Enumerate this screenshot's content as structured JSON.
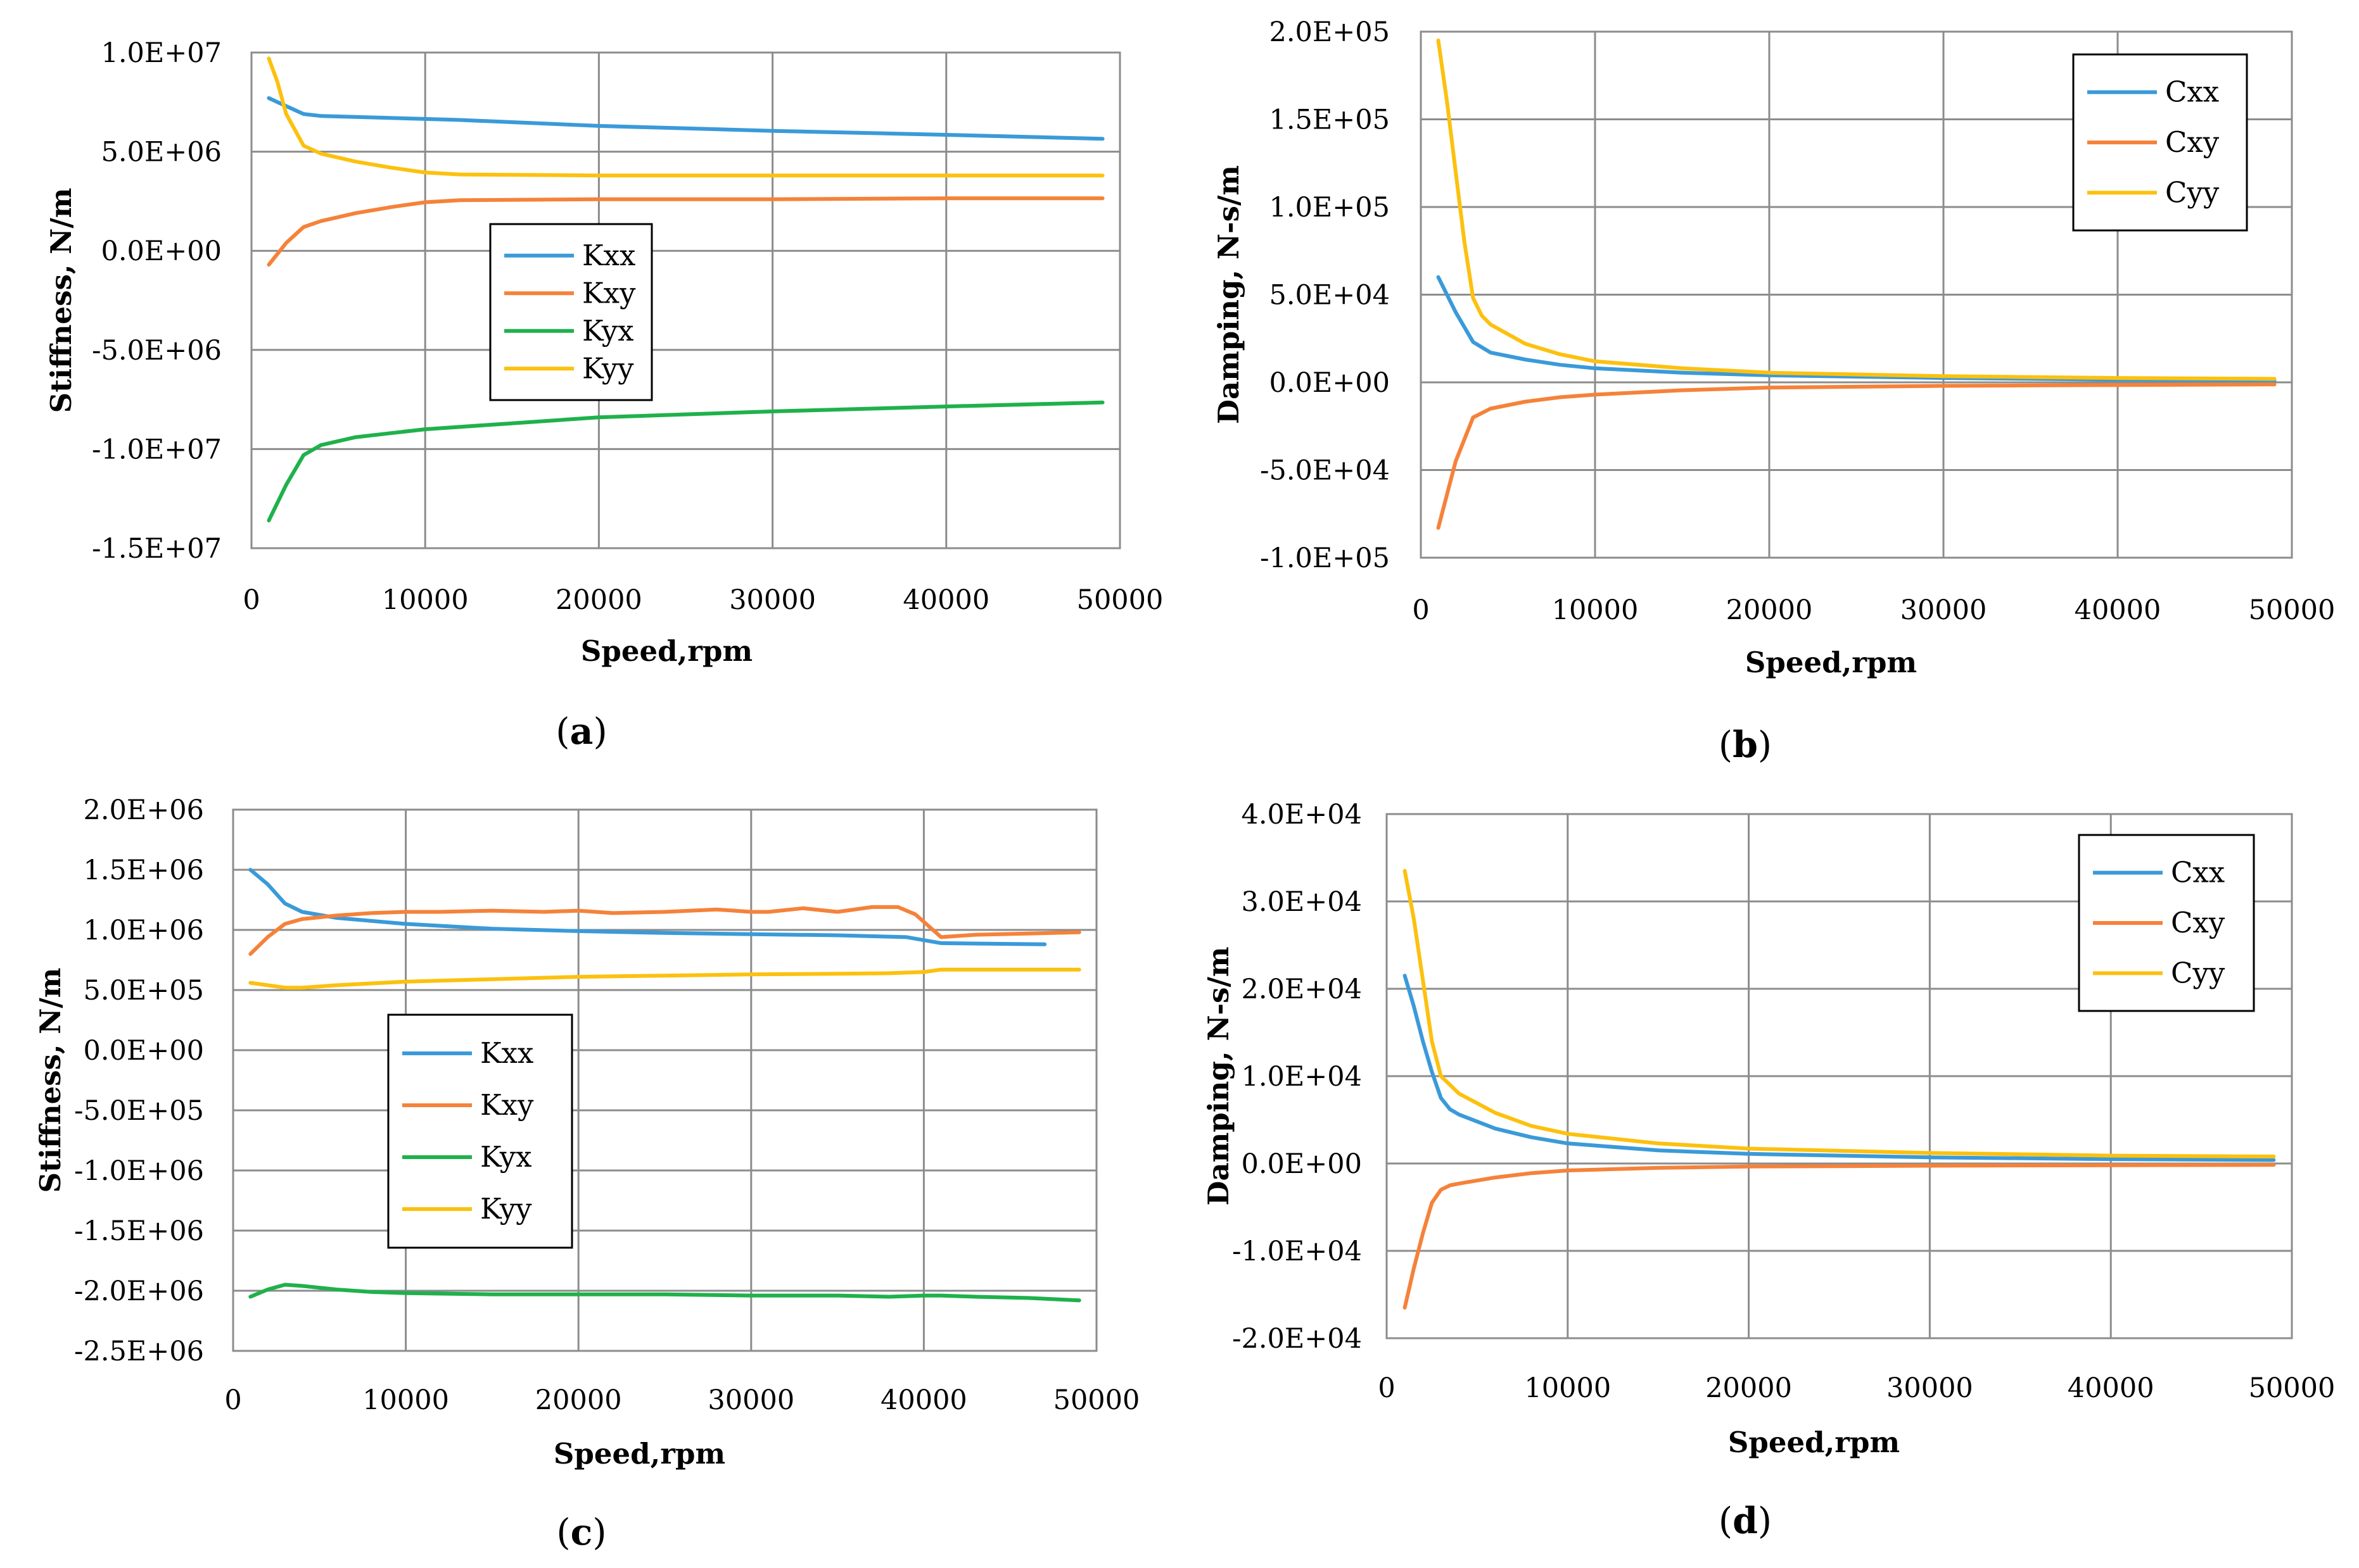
{
  "figure": {
    "captions": [
      "(a)",
      "(b)",
      "(c)",
      "(d)"
    ]
  },
  "colors": {
    "Kxx": "#3a9ad9",
    "Kxy": "#f5823a",
    "Kyx": "#1fb14b",
    "Kyy": "#fcc10f",
    "Cxx": "#3a9ad9",
    "Cxy": "#f5823a",
    "Cyy": "#fcc10f",
    "grid": "#8c8c8c",
    "frame": "#8c8c8c"
  },
  "chart_data": [
    {
      "id": "a",
      "type": "line",
      "caption_letter": "a",
      "xlabel": "Speed,rpm",
      "ylabel": "Stiffness, N/m",
      "xlim": [
        0,
        50000
      ],
      "ylim": [
        -15000000,
        10000000
      ],
      "xticks": [
        0,
        10000,
        20000,
        30000,
        40000,
        50000
      ],
      "yticks": [
        10000000,
        5000000,
        0,
        -5000000,
        -10000000,
        -15000000
      ],
      "ytick_labels": [
        "1.0E+07",
        "5.0E+06",
        "0.0E+00",
        "-5.0E+06",
        "-1.0E+07",
        "-1.5E+07"
      ],
      "xtick_labels": [
        "0",
        "10000",
        "20000",
        "30000",
        "40000",
        "50000"
      ],
      "legend_position": "center-left",
      "series": [
        {
          "name": "Kxx",
          "x": [
            1000,
            2000,
            3000,
            4000,
            6000,
            10000,
            12000,
            20000,
            30000,
            40000,
            49000
          ],
          "values": [
            7700000,
            7300000,
            6900000,
            6800000,
            6750000,
            6650000,
            6600000,
            6300000,
            6050000,
            5850000,
            5650000
          ]
        },
        {
          "name": "Kxy",
          "x": [
            1000,
            2000,
            3000,
            4000,
            6000,
            8000,
            10000,
            12000,
            20000,
            30000,
            40000,
            49000
          ],
          "values": [
            -700000,
            400000,
            1200000,
            1500000,
            1900000,
            2200000,
            2450000,
            2550000,
            2600000,
            2600000,
            2650000,
            2650000
          ]
        },
        {
          "name": "Kyx",
          "x": [
            1000,
            2000,
            3000,
            4000,
            6000,
            8000,
            10000,
            15000,
            20000,
            30000,
            40000,
            49000
          ],
          "values": [
            -13600000,
            -11800000,
            -10300000,
            -9800000,
            -9400000,
            -9200000,
            -9000000,
            -8700000,
            -8400000,
            -8100000,
            -7850000,
            -7650000
          ]
        },
        {
          "name": "Kyy",
          "x": [
            1000,
            1500,
            2000,
            3000,
            4000,
            6000,
            8000,
            10000,
            12000,
            20000,
            30000,
            40000,
            49000
          ],
          "values": [
            9700000,
            8500000,
            6900000,
            5300000,
            4900000,
            4500000,
            4200000,
            3950000,
            3850000,
            3800000,
            3800000,
            3800000,
            3800000
          ]
        }
      ]
    },
    {
      "id": "b",
      "type": "line",
      "caption_letter": "b",
      "xlabel": "Speed,rpm",
      "ylabel": "Damping, N-s/m",
      "xlim": [
        0,
        50000
      ],
      "ylim": [
        -100000,
        200000
      ],
      "xticks": [
        0,
        10000,
        20000,
        30000,
        40000,
        50000
      ],
      "yticks": [
        200000,
        150000,
        100000,
        50000,
        0,
        -50000,
        -100000
      ],
      "ytick_labels": [
        "2.0E+05",
        "1.5E+05",
        "1.0E+05",
        "5.0E+04",
        "0.0E+00",
        "-5.0E+04",
        "-1.0E+05"
      ],
      "xtick_labels": [
        "0",
        "10000",
        "20000",
        "30000",
        "40000",
        "50000"
      ],
      "legend_position": "top-right",
      "series": [
        {
          "name": "Cxx",
          "x": [
            1000,
            2000,
            3000,
            4000,
            6000,
            8000,
            10000,
            15000,
            20000,
            30000,
            40000,
            49000
          ],
          "values": [
            60000,
            40000,
            23000,
            17000,
            13000,
            10000,
            8000,
            5500,
            4000,
            2500,
            1500,
            1000
          ]
        },
        {
          "name": "Cxy",
          "x": [
            1000,
            2000,
            3000,
            4000,
            6000,
            8000,
            10000,
            15000,
            20000,
            30000,
            40000,
            49000
          ],
          "values": [
            -83000,
            -45000,
            -20000,
            -15000,
            -11000,
            -8500,
            -7000,
            -4500,
            -3000,
            -2000,
            -1500,
            -1200
          ]
        },
        {
          "name": "Cyy",
          "x": [
            1000,
            1500,
            2000,
            2500,
            3000,
            3500,
            4000,
            6000,
            8000,
            10000,
            15000,
            20000,
            30000,
            40000,
            49000
          ],
          "values": [
            195000,
            160000,
            120000,
            80000,
            48000,
            38000,
            33000,
            22000,
            16000,
            12000,
            8000,
            5500,
            3500,
            2500,
            2000
          ]
        }
      ]
    },
    {
      "id": "c",
      "type": "line",
      "caption_letter": "c",
      "xlabel": "Speed,rpm",
      "ylabel": "Stiffness, N/m",
      "xlim": [
        0,
        50000
      ],
      "ylim": [
        -2500000,
        2000000
      ],
      "xticks": [
        0,
        10000,
        20000,
        30000,
        40000,
        50000
      ],
      "yticks": [
        2000000,
        1500000,
        1000000,
        500000,
        0,
        -500000,
        -1000000,
        -1500000,
        -2000000,
        -2500000
      ],
      "ytick_labels": [
        "2.0E+06",
        "1.5E+06",
        "1.0E+06",
        "5.0E+05",
        "0.0E+00",
        "-5.0E+05",
        "-1.0E+06",
        "-1.5E+06",
        "-2.0E+06",
        "-2.5E+06"
      ],
      "xtick_labels": [
        "0",
        "10000",
        "20000",
        "30000",
        "40000",
        "50000"
      ],
      "legend_position": "center-left",
      "series": [
        {
          "name": "Kxx",
          "x": [
            1000,
            2000,
            3000,
            4000,
            6000,
            10000,
            15000,
            20000,
            25000,
            30000,
            35000,
            39000,
            41000,
            47000
          ],
          "values": [
            1500000,
            1380000,
            1220000,
            1150000,
            1100000,
            1050000,
            1010000,
            990000,
            975000,
            965000,
            955000,
            940000,
            890000,
            880000
          ]
        },
        {
          "name": "Kxy",
          "x": [
            1000,
            2000,
            3000,
            4000,
            6000,
            8000,
            10000,
            12000,
            15000,
            18000,
            20000,
            22000,
            25000,
            28000,
            30000,
            31000,
            33000,
            35000,
            37000,
            38500,
            39500,
            41000,
            43000,
            46000,
            49000
          ],
          "values": [
            800000,
            940000,
            1050000,
            1090000,
            1120000,
            1140000,
            1150000,
            1150000,
            1160000,
            1150000,
            1160000,
            1140000,
            1150000,
            1170000,
            1150000,
            1150000,
            1180000,
            1150000,
            1190000,
            1190000,
            1130000,
            940000,
            960000,
            970000,
            980000
          ]
        },
        {
          "name": "Kyx",
          "x": [
            1000,
            2000,
            3000,
            4000,
            6000,
            8000,
            10000,
            15000,
            20000,
            25000,
            30000,
            35000,
            38000,
            40000,
            41000,
            43000,
            46000,
            49000
          ],
          "values": [
            -2050000,
            -1990000,
            -1950000,
            -1960000,
            -1990000,
            -2010000,
            -2020000,
            -2030000,
            -2030000,
            -2030000,
            -2040000,
            -2040000,
            -2050000,
            -2040000,
            -2040000,
            -2050000,
            -2060000,
            -2080000
          ]
        },
        {
          "name": "Kyy",
          "x": [
            1000,
            2000,
            3000,
            4000,
            6000,
            10000,
            15000,
            20000,
            25000,
            30000,
            35000,
            38000,
            40000,
            41000,
            45000,
            49000
          ],
          "values": [
            560000,
            540000,
            520000,
            520000,
            540000,
            570000,
            590000,
            610000,
            620000,
            630000,
            635000,
            640000,
            650000,
            670000,
            670000,
            670000
          ]
        }
      ]
    },
    {
      "id": "d",
      "type": "line",
      "caption_letter": "d",
      "xlabel": "Speed,rpm",
      "ylabel": "Damping, N-s/m",
      "xlim": [
        0,
        50000
      ],
      "ylim": [
        -20000,
        40000
      ],
      "xticks": [
        0,
        10000,
        20000,
        30000,
        40000,
        50000
      ],
      "yticks": [
        40000,
        30000,
        20000,
        10000,
        0,
        -10000,
        -20000
      ],
      "ytick_labels": [
        "4.0E+04",
        "3.0E+04",
        "2.0E+04",
        "1.0E+04",
        "0.0E+00",
        "-1.0E+04",
        "-2.0E+04"
      ],
      "xtick_labels": [
        "0",
        "10000",
        "20000",
        "30000",
        "40000",
        "50000"
      ],
      "legend_position": "top-right",
      "series": [
        {
          "name": "Cxx",
          "x": [
            1000,
            1500,
            2000,
            2500,
            3000,
            3500,
            4000,
            6000,
            8000,
            10000,
            15000,
            20000,
            30000,
            40000,
            49000
          ],
          "values": [
            21500,
            18000,
            14000,
            10500,
            7500,
            6200,
            5600,
            4000,
            3000,
            2300,
            1500,
            1100,
            700,
            500,
            400
          ]
        },
        {
          "name": "Cxy",
          "x": [
            1000,
            1500,
            2000,
            2500,
            3000,
            3500,
            4000,
            6000,
            8000,
            10000,
            15000,
            20000,
            30000,
            40000,
            49000
          ],
          "values": [
            -16500,
            -12000,
            -8000,
            -4500,
            -3000,
            -2500,
            -2300,
            -1600,
            -1100,
            -800,
            -500,
            -350,
            -250,
            -200,
            -150
          ]
        },
        {
          "name": "Cyy",
          "x": [
            1000,
            1500,
            2000,
            2500,
            3000,
            3500,
            4000,
            6000,
            8000,
            10000,
            15000,
            20000,
            30000,
            40000,
            49000
          ],
          "values": [
            33500,
            28000,
            21000,
            14000,
            10000,
            9000,
            8000,
            5800,
            4300,
            3400,
            2300,
            1700,
            1200,
            900,
            800
          ]
        }
      ]
    }
  ]
}
